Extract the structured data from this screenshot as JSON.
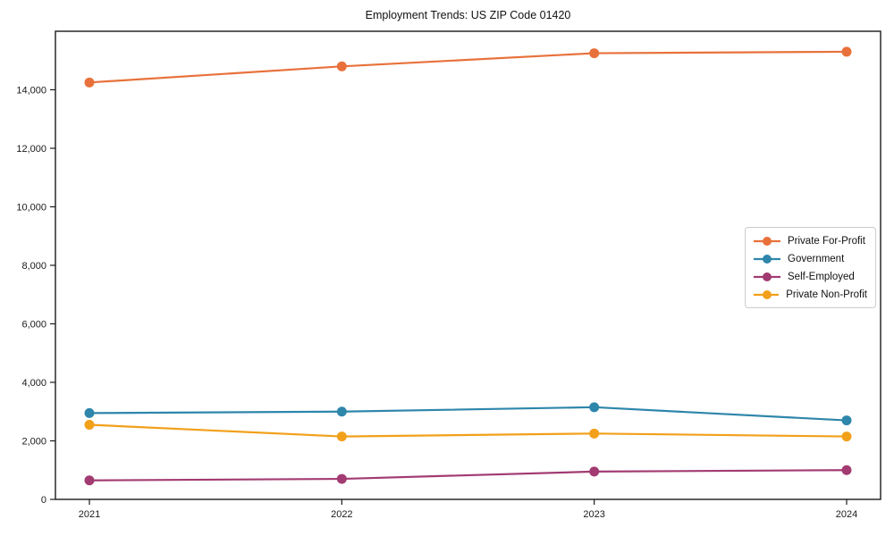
{
  "title": "Employment Trends: US ZIP Code 01420",
  "chart_data": {
    "type": "line",
    "title": "Employment Trends: US ZIP Code 01420",
    "categories": [
      "2021",
      "2022",
      "2023",
      "2024"
    ],
    "series": [
      {
        "name": "Private For-Profit",
        "color": "#E8713B",
        "values": [
          14250,
          14800,
          15250,
          15300
        ]
      },
      {
        "name": "Government",
        "color": "#2E86AB",
        "values": [
          2950,
          3000,
          3150,
          2700
        ]
      },
      {
        "name": "Self-Employed",
        "color": "#A23B72",
        "values": [
          650,
          700,
          950,
          1000
        ]
      },
      {
        "name": "Private Non-Profit",
        "color": "#F2A01A",
        "values": [
          2550,
          2150,
          2250,
          2150
        ]
      }
    ],
    "xlabel": "",
    "ylabel": "",
    "ylim": [
      0,
      16000
    ],
    "yticks": [
      0,
      2000,
      4000,
      6000,
      8000,
      10000,
      12000,
      14000
    ],
    "y_tick_format": "comma",
    "grid": false,
    "marker": "circle",
    "legend_position": "center-right",
    "axis_color": "#1a1a1a"
  }
}
